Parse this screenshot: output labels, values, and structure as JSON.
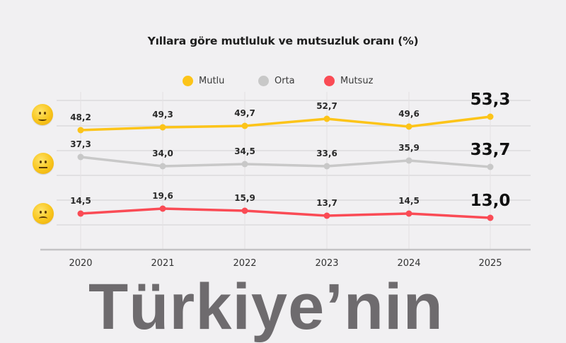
{
  "chart_data": {
    "type": "line",
    "title": "Yıllara göre mutluluk ve mutsuzluk oranı (%)",
    "xlabel": "",
    "ylabel": "",
    "categories": [
      "2020",
      "2021",
      "2022",
      "2023",
      "2024",
      "2025"
    ],
    "series": [
      {
        "name": "Mutlu",
        "color": "#fcc419",
        "values": [
          48.2,
          49.3,
          49.7,
          52.7,
          49.6,
          53.3
        ],
        "labels": [
          "48,2",
          "49,3",
          "49,7",
          "52,7",
          "49,6",
          "53,3"
        ],
        "py": [
          184,
          180,
          178,
          168,
          179,
          165
        ],
        "emoji": "slightly-smiling-face-icon"
      },
      {
        "name": "Orta",
        "color": "#c8c8c8",
        "values": [
          37.3,
          34.0,
          34.5,
          33.6,
          35.9,
          33.7
        ],
        "labels": [
          "37,3",
          "34,0",
          "34,5",
          "33,6",
          "35,9",
          "33,7"
        ],
        "py": [
          222,
          235,
          232,
          235,
          227,
          236
        ],
        "emoji": "neutral-face-icon"
      },
      {
        "name": "Mutsuz",
        "color": "#fa4b55",
        "values": [
          14.5,
          19.6,
          15.9,
          13.7,
          14.5,
          13.0
        ],
        "labels": [
          "14,5",
          "19,6",
          "15,9",
          "13,7",
          "14,5",
          "13,0"
        ],
        "py": [
          302,
          295,
          298,
          305,
          302,
          308
        ],
        "emoji": "frowning-face-icon"
      }
    ],
    "legend_position": "top",
    "grid": true
  },
  "legend": {
    "items": [
      {
        "label": "Mutlu",
        "color": "#fcc419"
      },
      {
        "label": "Orta",
        "color": "#c8c8c8"
      },
      {
        "label": "Mutsuz",
        "color": "#fa4b55"
      }
    ]
  },
  "headline": "Türkiye’nin"
}
